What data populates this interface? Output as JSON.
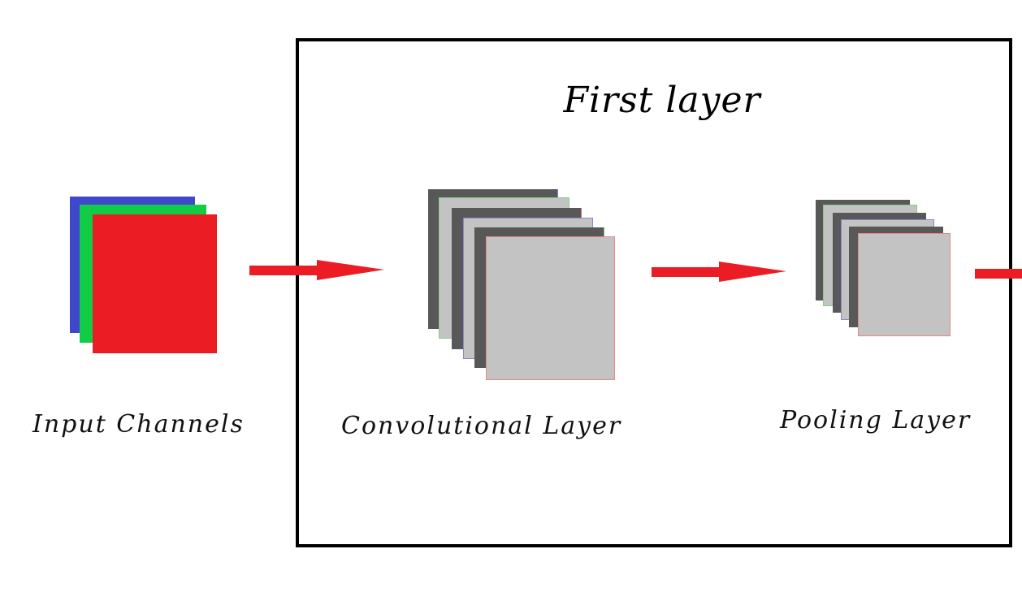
{
  "title": "First layer",
  "labels": {
    "input": "Input Channels",
    "conv": "Convolutional Layer",
    "pool": "Pooling Layer"
  },
  "colors": {
    "frame": "#000000",
    "arrow": "#ec1c24",
    "channel_blue": "#3f48cc",
    "channel_green": "#11cc44",
    "channel_red": "#ec1c24",
    "map_dark": "#585858",
    "map_light": "#c3c3c3"
  }
}
